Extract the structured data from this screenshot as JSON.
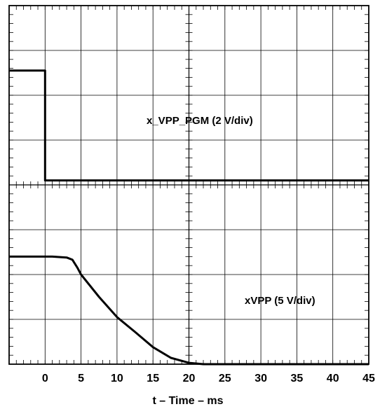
{
  "chart_data": {
    "type": "line",
    "title": "",
    "xlabel": "t – Time – ms",
    "ylabel": "",
    "xlim": [
      -5,
      45
    ],
    "grid": true,
    "x_ticks": [
      "0",
      "5",
      "10",
      "15",
      "20",
      "25",
      "30",
      "35",
      "40",
      "45"
    ],
    "x_tick_values": [
      0,
      5,
      10,
      15,
      20,
      25,
      30,
      35,
      40,
      45
    ],
    "divisions": {
      "horizontal": 10,
      "vertical": 8
    },
    "series": [
      {
        "name": "x_VPP_PGM (2 V/div)",
        "unit": "div",
        "x": [
          -5,
          0,
          0,
          45
        ],
        "y": [
          6.55,
          6.55,
          4.1,
          4.1
        ]
      },
      {
        "name": "xVPP (5 V/div)",
        "unit": "div",
        "x": [
          -5,
          1,
          3,
          3.8,
          4.5,
          5,
          7.5,
          10,
          12.5,
          15,
          17.5,
          20,
          22,
          25,
          45
        ],
        "y": [
          2.4,
          2.4,
          2.38,
          2.33,
          2.15,
          2.0,
          1.5,
          1.05,
          0.72,
          0.38,
          0.14,
          0.03,
          0.0,
          0.0,
          0.0
        ]
      }
    ]
  }
}
